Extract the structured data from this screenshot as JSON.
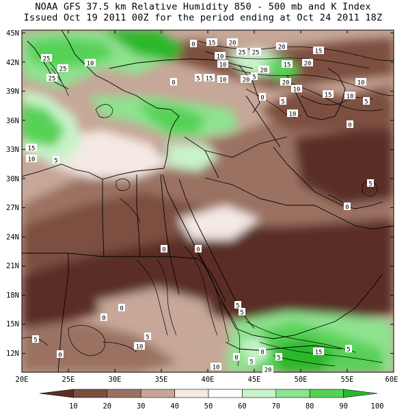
{
  "header": {
    "title_line1": "NOAA GFS 37.5 km Relative Humidity 850 - 500 mb and K Index",
    "title_line2": "Issued Oct 19 2011 00Z for the period ending at Oct 24 2011 18Z"
  },
  "map": {
    "lat_labels": [
      "45N",
      "42N",
      "39N",
      "36N",
      "33N",
      "30N",
      "27N",
      "24N",
      "21N",
      "18N",
      "15N",
      "12N"
    ],
    "lon_labels": [
      "20E",
      "25E",
      "30E",
      "35E",
      "40E",
      "45E",
      "50E",
      "55E",
      "60E"
    ],
    "contour_labels": [
      "25",
      "25",
      "10",
      "25",
      "15",
      "20",
      "10",
      "25",
      "25",
      "10",
      "0",
      "5",
      "15",
      "10",
      "20",
      "5",
      "20",
      "20",
      "20",
      "15",
      "15",
      "20",
      "10",
      "0",
      "5",
      "15",
      "10",
      "10",
      "5",
      "10",
      "0",
      "15",
      "10",
      "5",
      "5",
      "0",
      "0",
      "0",
      "0",
      "5",
      "5",
      "0",
      "0",
      "5",
      "5",
      "0",
      "10",
      "5",
      "0",
      "5",
      "15",
      "20",
      "10",
      "5",
      "0"
    ]
  },
  "colorbar": {
    "ticks": [
      "10",
      "20",
      "30",
      "40",
      "50",
      "60",
      "70",
      "80",
      "90",
      "100"
    ],
    "colors": [
      "#5a2f26",
      "#7b5040",
      "#9b7262",
      "#c6a798",
      "#f4e9e3",
      "#ffffff",
      "#c9f3c9",
      "#8fe28f",
      "#56d156",
      "#2ab82a"
    ]
  }
}
